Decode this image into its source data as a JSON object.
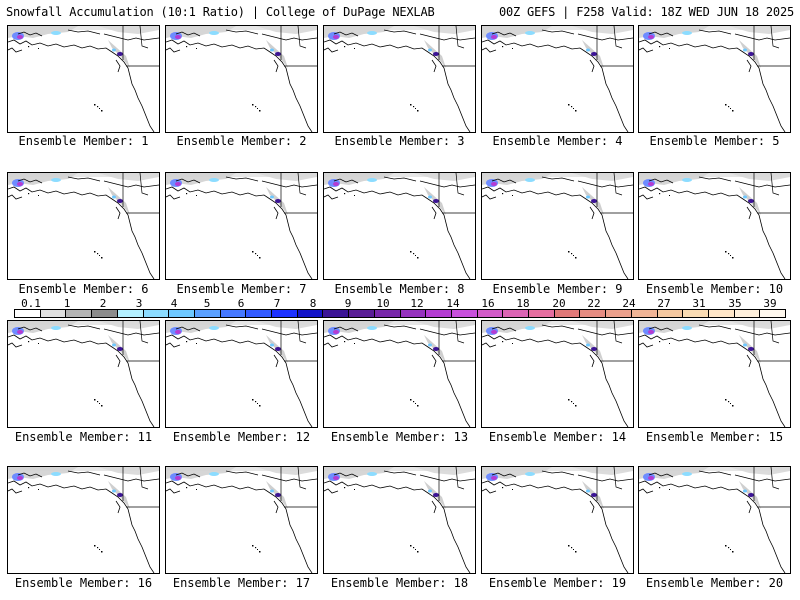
{
  "header": {
    "left": "Snowfall Accumulation (10:1 Ratio) | College of DuPage NEXLAB",
    "right": "00Z GEFS | F258 Valid: 18Z WED JUN 18 2025"
  },
  "caption_prefix": "Ensemble Member: ",
  "members": [
    "1",
    "2",
    "3",
    "4",
    "5",
    "6",
    "7",
    "8",
    "9",
    "10",
    "11",
    "12",
    "13",
    "14",
    "15",
    "16",
    "17",
    "18",
    "19",
    "20"
  ],
  "colorbar": {
    "labels": [
      "0.1",
      "1",
      "2",
      "3",
      "4",
      "5",
      "6",
      "7",
      "8",
      "9",
      "10",
      "12",
      "14",
      "16",
      "18",
      "20",
      "22",
      "24",
      "27",
      "31",
      "35",
      "39"
    ],
    "colors": [
      "#ffffff",
      "#e0e0e0",
      "#b4b4b4",
      "#8c8c8c",
      "#b4f0ff",
      "#8cdcff",
      "#6ec8ff",
      "#5aa0ff",
      "#4678ff",
      "#325aff",
      "#1e32ff",
      "#1414c8",
      "#3c1496",
      "#5a1e96",
      "#7828aa",
      "#9632be",
      "#b43cd2",
      "#c850dc",
      "#d25ac8",
      "#dc64b4",
      "#e66ea0",
      "#e07878",
      "#e68c82",
      "#eca08c",
      "#f0b496",
      "#f5c8a0",
      "#fadcb4",
      "#ffe6c8",
      "#fff0dc",
      "#fff8ee"
    ]
  }
}
